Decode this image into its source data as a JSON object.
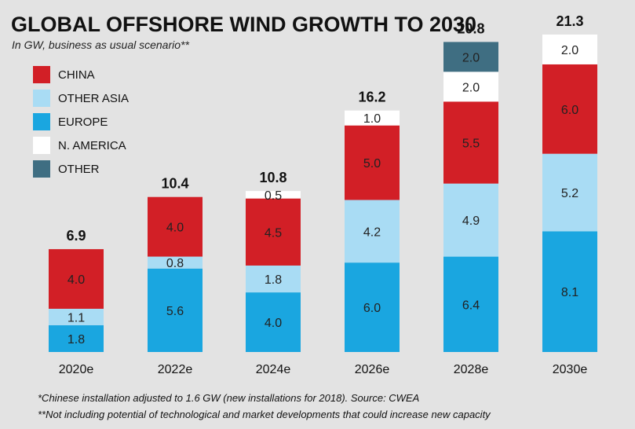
{
  "chart_data": {
    "type": "bar",
    "stacked": true,
    "title": "GLOBAL OFFSHORE WIND GROWTH TO 2030",
    "subtitle": "In GW, business as usual scenario**",
    "categories": [
      "2020e",
      "2022e",
      "2024e",
      "2026e",
      "2028e",
      "2030e"
    ],
    "series": [
      {
        "name": "EUROPE",
        "color": "#1aa6e0",
        "values": [
          1.8,
          5.6,
          4.0,
          6.0,
          6.4,
          8.1
        ]
      },
      {
        "name": "OTHER ASIA",
        "color": "#a9dcf4",
        "values": [
          1.1,
          0.8,
          1.8,
          4.2,
          4.9,
          5.2
        ]
      },
      {
        "name": "CHINA",
        "color": "#d21f26",
        "values": [
          4.0,
          4.0,
          4.5,
          5.0,
          5.5,
          6.0
        ]
      },
      {
        "name": "N. AMERICA",
        "color": "#ffffff",
        "values": [
          null,
          null,
          0.5,
          1.0,
          2.0,
          2.0
        ]
      },
      {
        "name": "OTHER",
        "color": "#3f6e82",
        "values": [
          null,
          null,
          null,
          null,
          2.0,
          null
        ]
      }
    ],
    "totals": [
      "6.9",
      "10.4",
      "10.8",
      "16.2",
      "20.8",
      "21.3"
    ],
    "legend": {
      "placement": "top-left",
      "order": [
        "CHINA",
        "OTHER ASIA",
        "EUROPE",
        "N. AMERICA",
        "OTHER"
      ]
    },
    "grid": false,
    "footnotes": [
      "*Chinese installation adjusted to 1.6 GW (new installations for 2018). Source: CWEA",
      "**Not including potential of technological and market developments that could increase new capacity"
    ]
  }
}
